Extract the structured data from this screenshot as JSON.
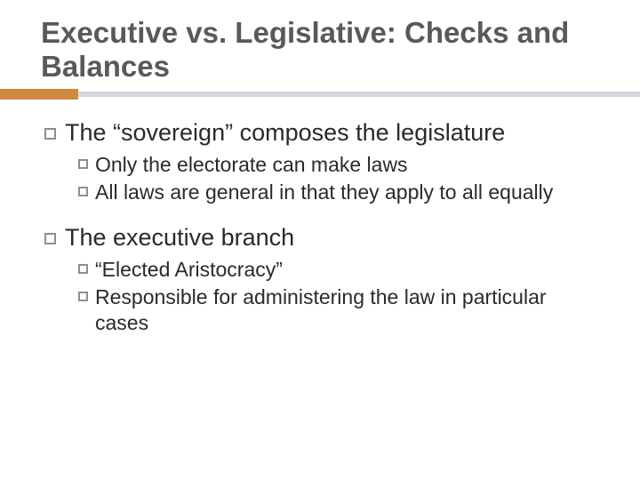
{
  "title": "Executive vs. Legislative: Checks and Balances",
  "accent_color": "#d08a3f",
  "rule_color": "#d3d7dd",
  "title_color": "#595959",
  "body_color": "#2a2a2a",
  "background_color": "#ffffff",
  "title_fontsize": 33,
  "lvl1_fontsize": 27,
  "lvl2_fontsize": 23,
  "sections": [
    {
      "heading": "The “sovereign” composes the legislature",
      "items": [
        "Only the electorate can make laws",
        "All laws are general in that they apply to all equally"
      ]
    },
    {
      "heading": "The executive branch",
      "items": [
        "“Elected Aristocracy”",
        "Responsible for administering the law in particular cases"
      ]
    }
  ]
}
